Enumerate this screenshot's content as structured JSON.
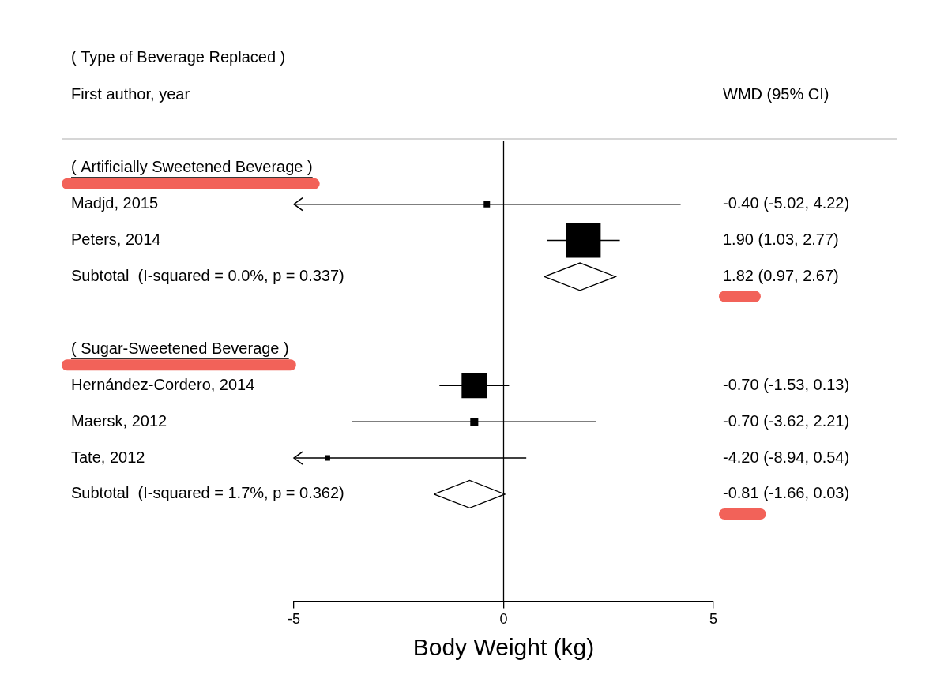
{
  "chart_data": {
    "type": "forest",
    "title": "( Type of Beverage Replaced )",
    "y_label": "First author, year",
    "value_header": "WMD (95% CI)",
    "x_label": "Body Weight (kg)",
    "xlim": [
      -5,
      5
    ],
    "xticks": [
      -5,
      0,
      5
    ],
    "reference_line": 0,
    "grid": false,
    "color": "#000000",
    "marker": "square",
    "groups": [
      {
        "name": "( Artificially Sweetened Beverage )",
        "studies": [
          {
            "name": "Madjd, 2015",
            "value": -0.4,
            "lower": -5.02,
            "upper": 4.22,
            "weight": 2.0,
            "value_label": "-0.40 (-5.02, 4.22)"
          },
          {
            "name": "Peters, 2014",
            "value": 1.9,
            "lower": 1.03,
            "upper": 2.77,
            "weight": 61.0,
            "value_label": "1.90 (1.03, 2.77)"
          }
        ],
        "subtotal": {
          "name": "Subtotal  (I-squared = 0.0%, p = 0.337)",
          "value": 1.82,
          "lower": 0.97,
          "upper": 2.67,
          "marker": "diamond",
          "value_label": "1.82 (0.97, 2.67)"
        }
      },
      {
        "name": "( Sugar-Sweetened Beverage )",
        "studies": [
          {
            "name": "Hernández-Cordero, 2014",
            "value": -0.7,
            "lower": -1.53,
            "upper": 0.13,
            "weight": 32.3,
            "value_label": "-0.70 (-1.53, 0.13)"
          },
          {
            "name": "Maersk, 2012",
            "value": -0.7,
            "lower": -3.62,
            "upper": 2.21,
            "weight": 3.2,
            "value_label": "-0.70 (-3.62, 2.21)"
          },
          {
            "name": "Tate, 2012",
            "value": -4.2,
            "lower": -8.94,
            "upper": 0.54,
            "weight": 1.5,
            "value_label": "-4.20 (-8.94, 0.54)"
          }
        ],
        "subtotal": {
          "name": "Subtotal  (I-squared = 1.7%, p = 0.362)",
          "value": -0.81,
          "lower": -1.66,
          "upper": 0.03,
          "marker": "diamond",
          "value_label": "-0.81 (-1.66, 0.03)"
        }
      }
    ]
  }
}
